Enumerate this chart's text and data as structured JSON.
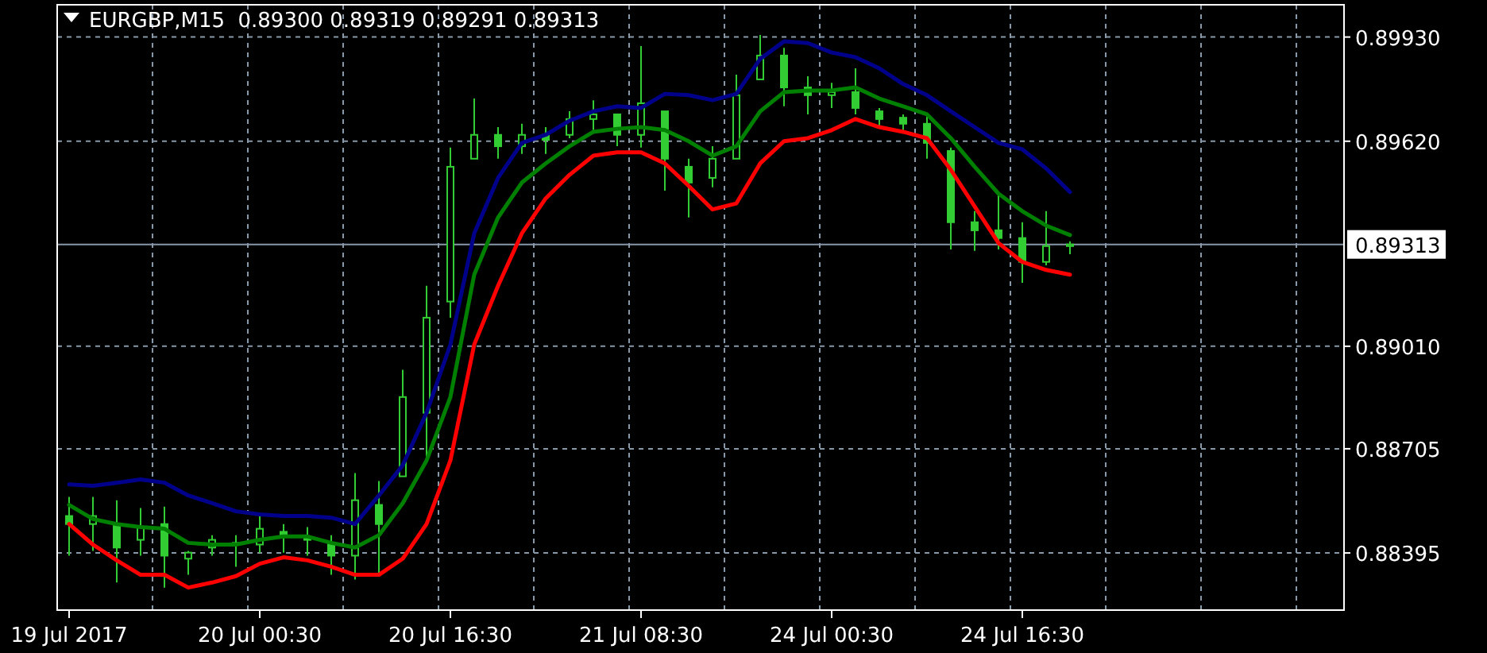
{
  "chart_data": {
    "type": "candlestick",
    "title": "EURGBP,M15  0.89300 0.89319 0.89291 0.89313",
    "categories": [
      "19 Jul 2017",
      null,
      null,
      null,
      null,
      null,
      null,
      null,
      "20 Jul 00:30",
      null,
      null,
      null,
      null,
      null,
      null,
      null,
      "20 Jul 16:30",
      null,
      null,
      null,
      null,
      null,
      null,
      null,
      "21 Jul 08:30",
      null,
      null,
      null,
      null,
      null,
      null,
      null,
      "24 Jul 00:30",
      null,
      null,
      null,
      null,
      null,
      null,
      null,
      "24 Jul 16:30",
      null,
      null,
      null,
      null,
      null,
      null,
      null,
      null,
      null,
      null,
      null,
      null,
      null
    ],
    "color": "#32cd32",
    "ohlc": [
      [
        0.88505,
        0.88562,
        0.88387,
        0.88481
      ],
      [
        0.88481,
        0.88562,
        0.88401,
        0.88505
      ],
      [
        0.88481,
        0.88552,
        0.88307,
        0.88411
      ],
      [
        0.88434,
        0.88529,
        0.88387,
        0.88472
      ],
      [
        0.88481,
        0.88533,
        0.88292,
        0.88387
      ],
      [
        0.88378,
        0.88401,
        0.8833,
        0.88396
      ],
      [
        0.88411,
        0.88448,
        0.88387,
        0.88434
      ],
      [
        0.88425,
        0.88448,
        0.88354,
        0.8842
      ],
      [
        0.8842,
        0.88505,
        0.88396,
        0.88467
      ],
      [
        0.88458,
        0.88481,
        0.88396,
        0.88444
      ],
      [
        0.88444,
        0.88472,
        0.88387,
        0.88434
      ],
      [
        0.88425,
        0.88448,
        0.8833,
        0.88387
      ],
      [
        0.88387,
        0.88633,
        0.88316,
        0.88552
      ],
      [
        0.88538,
        0.88609,
        0.8833,
        0.88481
      ],
      [
        0.88623,
        0.8894,
        0.88623,
        0.88859
      ],
      [
        0.88812,
        0.8919,
        0.8867,
        0.89095
      ],
      [
        0.89143,
        0.89601,
        0.89095,
        0.89544
      ],
      [
        0.89568,
        0.89747,
        0.89568,
        0.89639
      ],
      [
        0.89639,
        0.89662,
        0.89568,
        0.89605
      ],
      [
        0.89605,
        0.89672,
        0.89582,
        0.89639
      ],
      [
        0.89639,
        0.89662,
        0.89582,
        0.89624
      ],
      [
        0.89639,
        0.89709,
        0.89629,
        0.89686
      ],
      [
        0.89686,
        0.89742,
        0.89653,
        0.897
      ],
      [
        0.897,
        0.897,
        0.89605,
        0.89639
      ],
      [
        0.89639,
        0.89903,
        0.89601,
        0.89733
      ],
      [
        0.89709,
        0.89709,
        0.89473,
        0.89568
      ],
      [
        0.89544,
        0.89568,
        0.89393,
        0.89497
      ],
      [
        0.89511,
        0.89605,
        0.89483,
        0.89568
      ],
      [
        0.89568,
        0.89818,
        0.89568,
        0.89757
      ],
      [
        0.89804,
        0.89936,
        0.89804,
        0.89875
      ],
      [
        0.89875,
        0.89898,
        0.89724,
        0.8978
      ],
      [
        0.8978,
        0.89813,
        0.897,
        0.89757
      ],
      [
        0.89757,
        0.89794,
        0.89719,
        0.89766
      ],
      [
        0.89766,
        0.89837,
        0.897,
        0.89719
      ],
      [
        0.89709,
        0.89719,
        0.89662,
        0.89686
      ],
      [
        0.8969,
        0.897,
        0.89653,
        0.89672
      ],
      [
        0.89672,
        0.897,
        0.89568,
        0.89615
      ],
      [
        0.89591,
        0.89601,
        0.89298,
        0.89379
      ],
      [
        0.89379,
        0.89412,
        0.89294,
        0.89355
      ],
      [
        0.89355,
        0.89464,
        0.89298,
        0.89332
      ],
      [
        0.89332,
        0.89379,
        0.89199,
        0.89261
      ],
      [
        0.89261,
        0.89412,
        0.89251,
        0.89308
      ],
      [
        0.89308,
        0.89322,
        0.89284,
        0.89313
      ],
      null,
      null,
      null,
      null,
      null,
      null,
      null,
      null,
      null,
      null,
      null
    ],
    "series": [
      {
        "type": "line",
        "color": "#00008b",
        "values": [
          0.88599,
          0.88595,
          0.88604,
          0.88614,
          0.88604,
          0.88566,
          0.88543,
          0.88519,
          0.8851,
          0.88505,
          0.88505,
          0.885,
          0.88481,
          0.88566,
          0.88656,
          0.88812,
          0.89015,
          0.89346,
          0.89511,
          0.89615,
          0.89639,
          0.89681,
          0.89709,
          0.89724,
          0.89719,
          0.89761,
          0.89757,
          0.89742,
          0.89761,
          0.89865,
          0.89917,
          0.89912,
          0.89884,
          0.8987,
          0.89837,
          0.8979,
          0.89757,
          0.89709,
          0.89662,
          0.89615,
          0.89596,
          0.89539,
          0.89469,
          null,
          null,
          null,
          null,
          null,
          null,
          null,
          null,
          null,
          null,
          null
        ]
      },
      {
        "type": "line",
        "color": "#008000",
        "values": [
          0.88538,
          0.88496,
          0.88481,
          0.88472,
          0.88467,
          0.88425,
          0.8842,
          0.8842,
          0.88434,
          0.88444,
          0.88444,
          0.88425,
          0.88411,
          0.88448,
          0.88543,
          0.8867,
          0.88859,
          0.89223,
          0.89393,
          0.89497,
          0.89554,
          0.89605,
          0.89648,
          0.89657,
          0.89662,
          0.89653,
          0.8962,
          0.89577,
          0.89605,
          0.89709,
          0.89766,
          0.89771,
          0.89771,
          0.8978,
          0.89747,
          0.89724,
          0.897,
          0.89629,
          0.89544,
          0.89464,
          0.89412,
          0.89369,
          0.89341,
          null,
          null,
          null,
          null,
          null,
          null,
          null,
          null,
          null,
          null,
          null
        ]
      },
      {
        "type": "line",
        "color": "#ff0000",
        "values": [
          0.88481,
          0.8842,
          0.88373,
          0.8833,
          0.8833,
          0.88292,
          0.88307,
          0.88326,
          0.88363,
          0.88382,
          0.88373,
          0.88354,
          0.8833,
          0.8833,
          0.88378,
          0.88481,
          0.8867,
          0.89015,
          0.8919,
          0.89346,
          0.8945,
          0.8952,
          0.89577,
          0.89587,
          0.89587,
          0.89554,
          0.89487,
          0.89417,
          0.89435,
          0.89554,
          0.8962,
          0.89629,
          0.89653,
          0.89686,
          0.89662,
          0.89648,
          0.89629,
          0.89535,
          0.89426,
          0.89317,
          0.89261,
          0.89237,
          0.89223,
          null,
          null,
          null,
          null,
          null,
          null,
          null,
          null,
          null,
          null,
          null
        ]
      }
    ],
    "ylim": [
      0.88225,
      0.90026
    ],
    "yticks": [
      {
        "value": 0.88395,
        "label": "0.88395"
      },
      {
        "value": 0.88705,
        "label": "0.88705"
      },
      {
        "value": 0.8901,
        "label": "0.89010"
      },
      {
        "value": 0.8962,
        "label": "0.89620"
      },
      {
        "value": 0.8993,
        "label": "0.89930"
      }
    ],
    "ref_lines": [
      {
        "axis": "y",
        "value": 0.89313,
        "label": "0.89313",
        "color": "#8798a8"
      }
    ],
    "grid": true,
    "legend": false,
    "marker": "none",
    "line_style": "solid"
  }
}
